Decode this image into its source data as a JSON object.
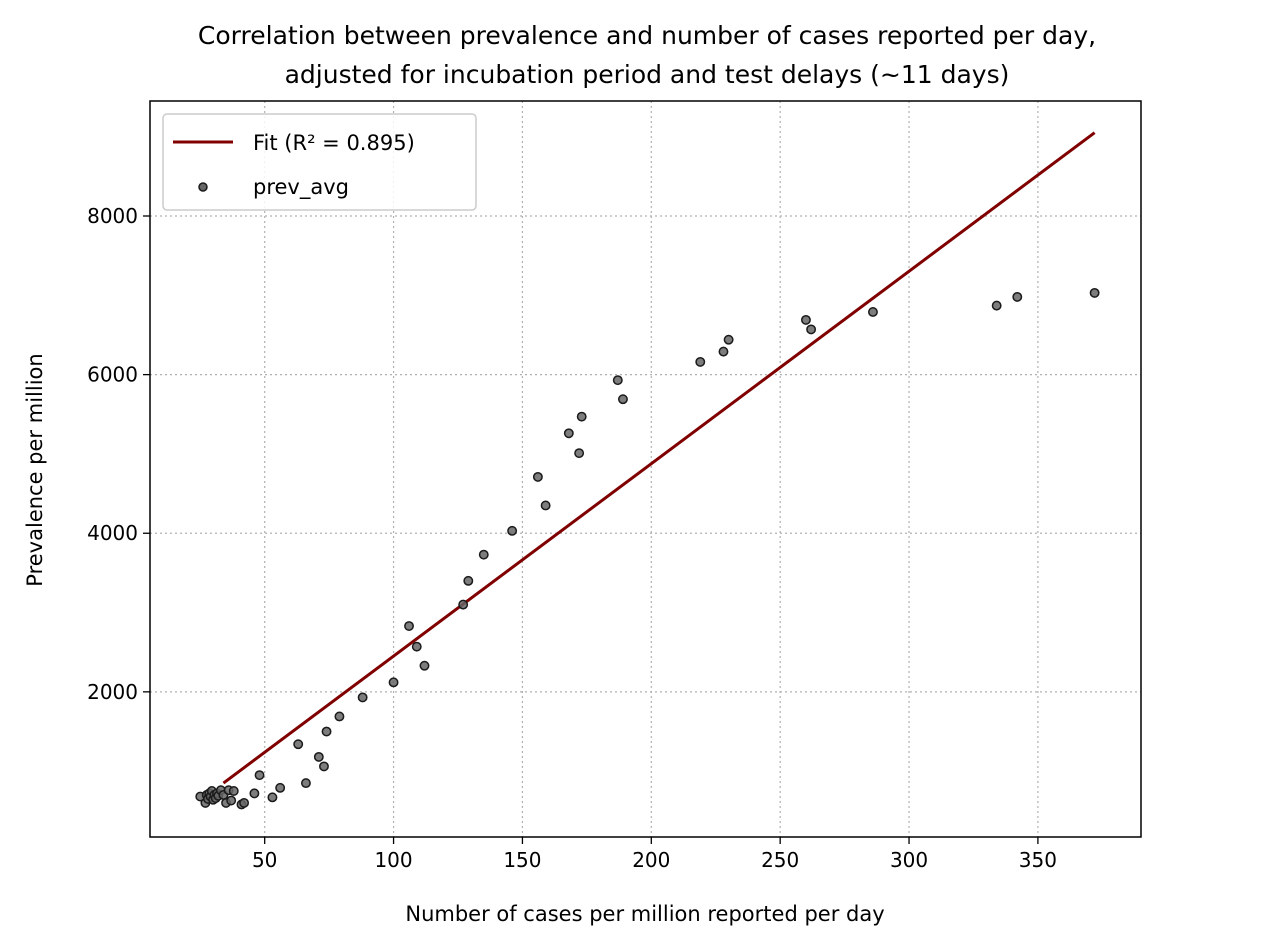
{
  "chart_data": {
    "type": "scatter",
    "title": "Correlation between prevalence and number of cases reported per day,",
    "subtitle": "adjusted for incubation period and test delays (~11 days)",
    "xlabel": "Number of cases per million reported per day",
    "ylabel": "Prevalence per million",
    "xlim": [
      5.5,
      390
    ],
    "ylim": [
      170,
      9450
    ],
    "xticks": [
      50,
      100,
      150,
      200,
      250,
      300,
      350
    ],
    "yticks": [
      2000,
      4000,
      6000,
      8000
    ],
    "grid": true,
    "legend_position": "upper-left",
    "series": [
      {
        "name": "Fit (R² = 0.895)",
        "type": "line",
        "color": "#800000",
        "x": [
          34,
          372
        ],
        "y": [
          850,
          9050
        ]
      },
      {
        "name": "prev_avg",
        "type": "scatter",
        "color": "#3a3a3a",
        "x": [
          25,
          27,
          27.5,
          28,
          28.5,
          29,
          29.5,
          30,
          30.5,
          31,
          31.5,
          32,
          33,
          34,
          35,
          36,
          37,
          38,
          41,
          42,
          46,
          48,
          53,
          56,
          63,
          66,
          71,
          73,
          74,
          79,
          88,
          100,
          106,
          109,
          112,
          127,
          129,
          135,
          146,
          156,
          159,
          168,
          172,
          173,
          187,
          189,
          219,
          228,
          230,
          260,
          262,
          286,
          334,
          342,
          372
        ],
        "y": [
          680,
          600,
          700,
          650,
          720,
          680,
          750,
          640,
          700,
          660,
          720,
          690,
          760,
          700,
          600,
          760,
          630,
          750,
          580,
          600,
          720,
          950,
          670,
          790,
          1340,
          850,
          1180,
          1060,
          1500,
          1690,
          1930,
          2120,
          2830,
          2570,
          2330,
          3100,
          3400,
          3730,
          4030,
          4710,
          4350,
          5260,
          5010,
          5470,
          5930,
          5690,
          6160,
          6290,
          6440,
          6690,
          6570,
          6790,
          6870,
          6980,
          7030
        ]
      }
    ]
  }
}
